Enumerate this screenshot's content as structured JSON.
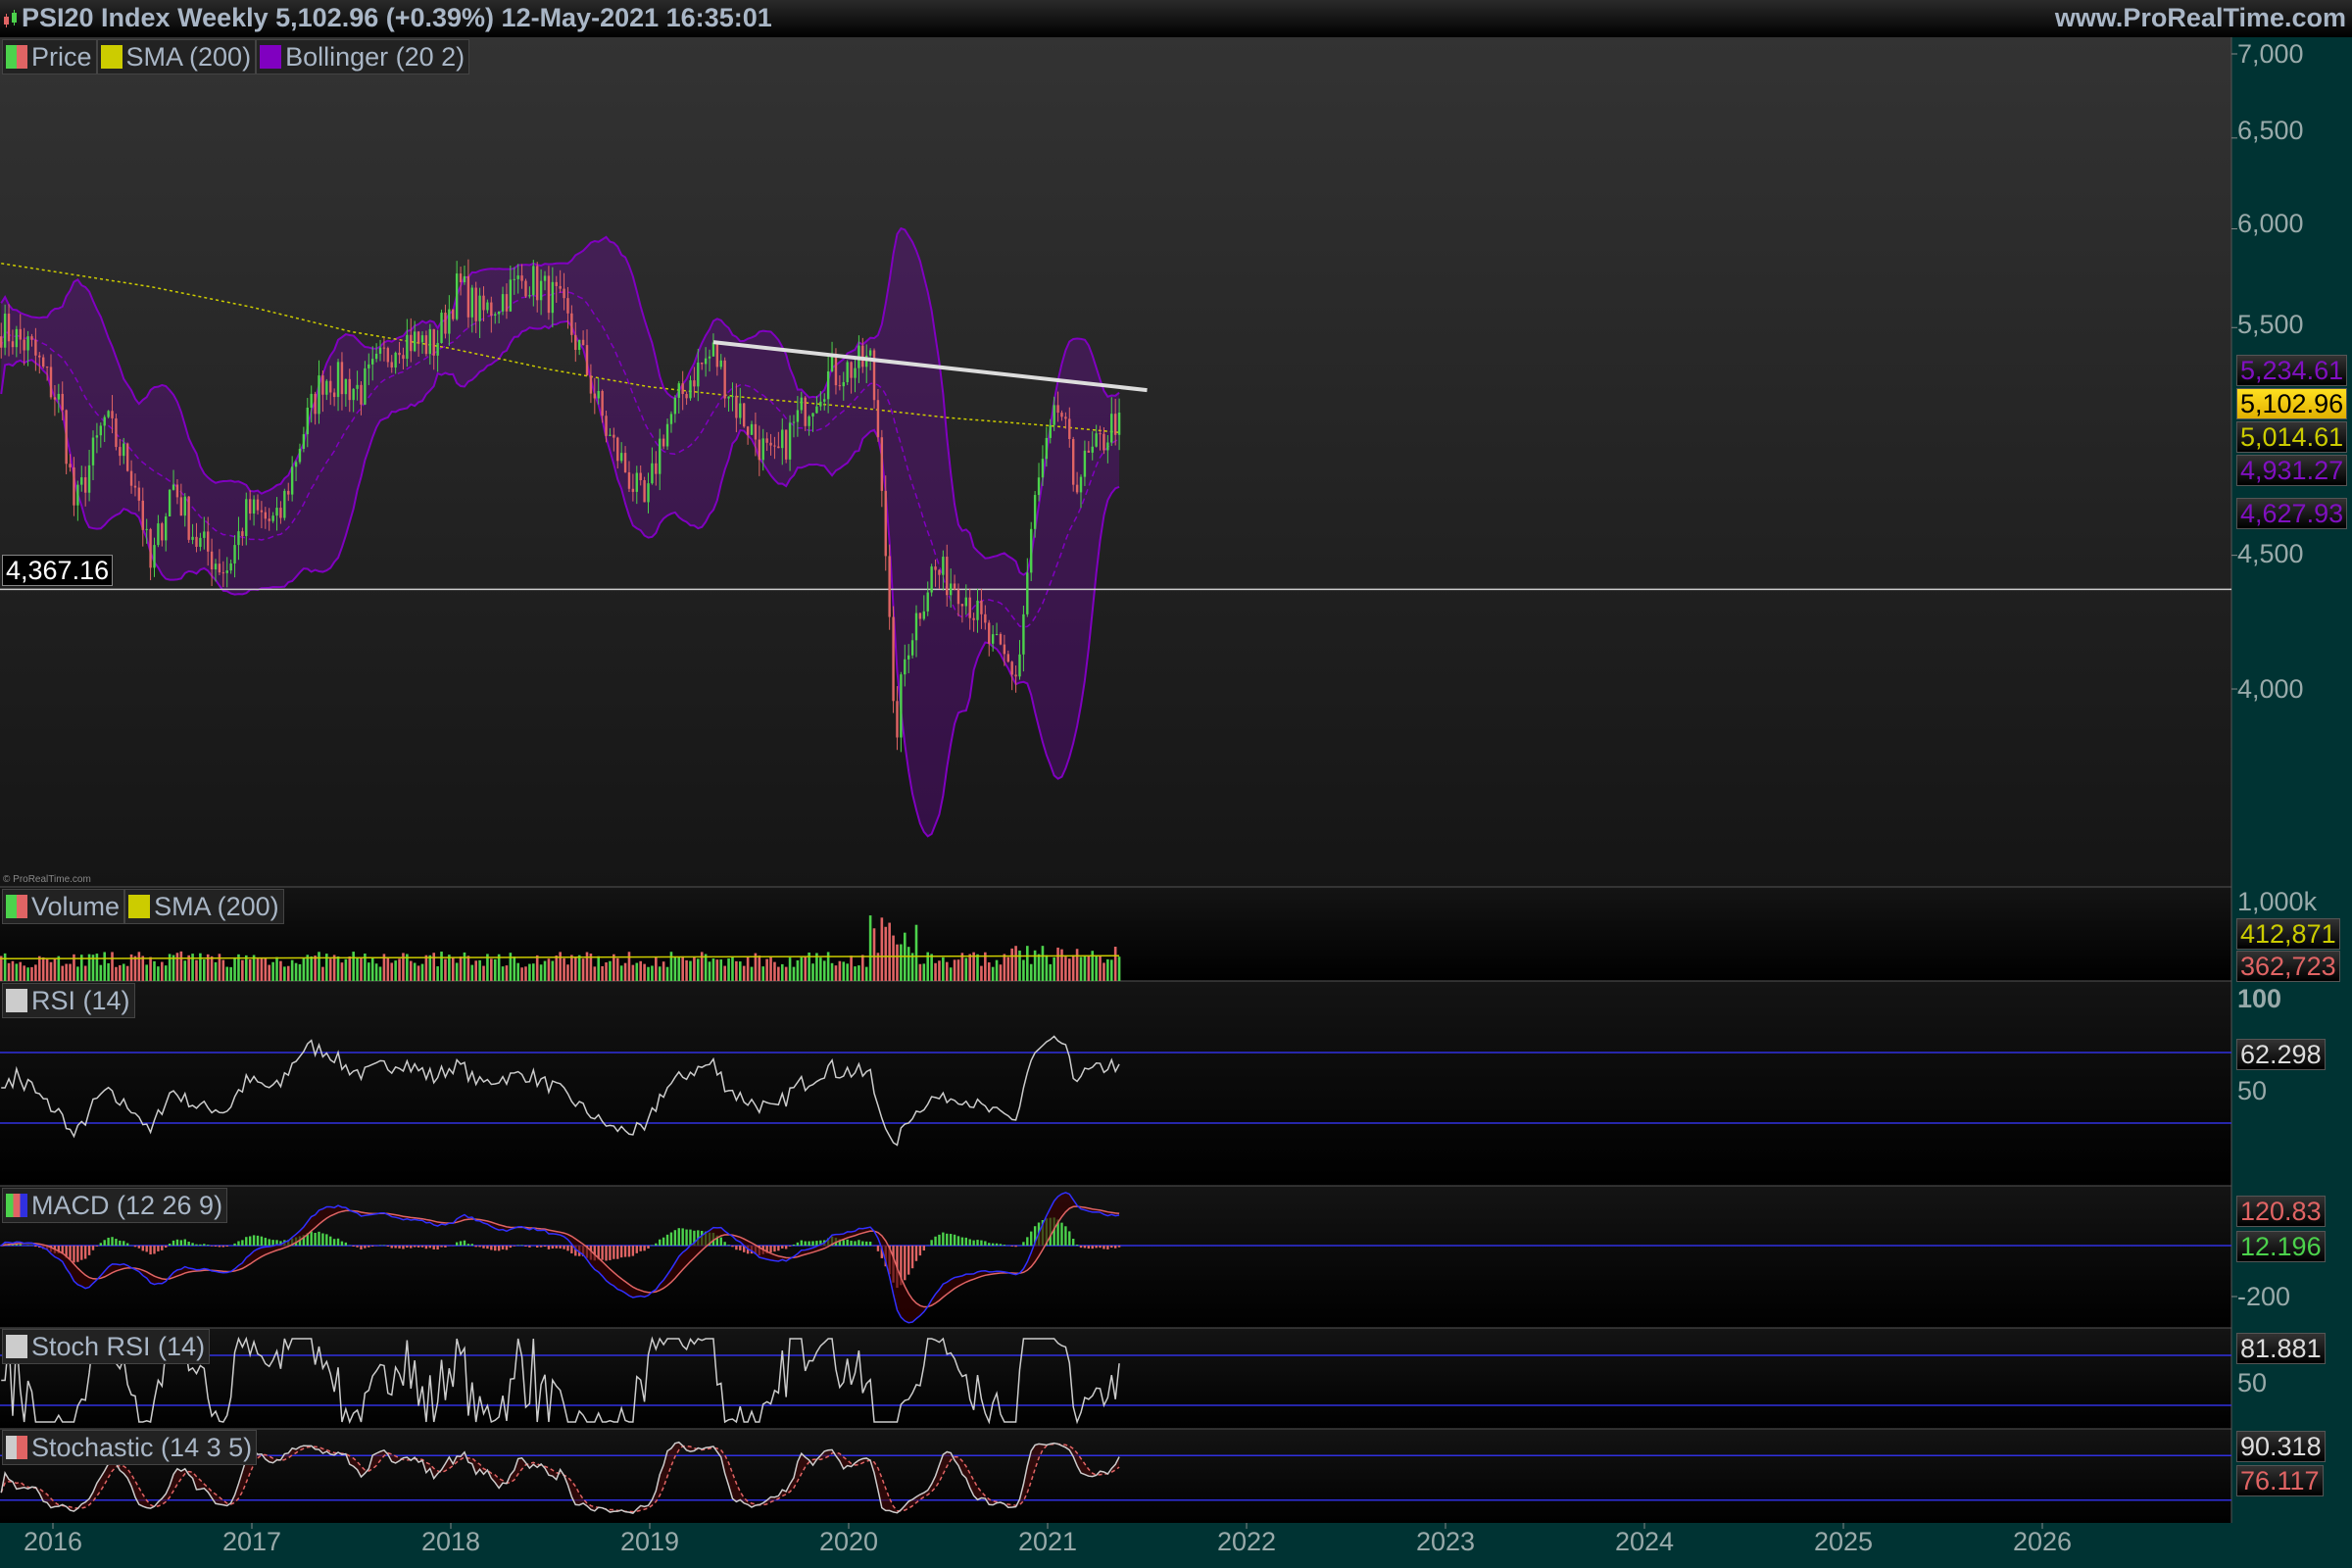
{
  "header": {
    "title": "PSI20 Index Weekly 5,102.96 (+0.39%) 12-May-2021 16:35:01",
    "site": "www.ProRealTime.com",
    "copyright": "© ProRealTime.com"
  },
  "legends": {
    "price": [
      "Price",
      "SMA (200)",
      "Bollinger (20 2)"
    ],
    "volume": [
      "Volume",
      "SMA (200)"
    ],
    "rsi": [
      "RSI (14)"
    ],
    "macd": [
      "MACD (12 26 9)"
    ],
    "stochrsi": [
      "Stoch RSI (14)"
    ],
    "stoch": [
      "Stochastic (14 3 5)"
    ]
  },
  "colors": {
    "up": "#4cd24c",
    "down": "#e06464",
    "sma": "#cccc00",
    "bollinger": "#8000c0",
    "axis_bg": "#003333",
    "level_line": "#3030e0",
    "macd": "#3030ff",
    "signal": "#e06464"
  },
  "axis": {
    "price_ticks": [
      "7,000",
      "6,500",
      "6,000",
      "5,500",
      "4,500",
      "4,000"
    ],
    "volume_ticks": [
      "1,000k"
    ],
    "rsi_ticks": [
      "100",
      "50"
    ],
    "macd_ticks": [
      "-200"
    ],
    "stochrsi_ticks": [
      "50"
    ],
    "years": [
      "2016",
      "2017",
      "2018",
      "2019",
      "2020",
      "2021",
      "2022",
      "2023",
      "2024",
      "2025",
      "2026"
    ]
  },
  "labels": {
    "hline": "4,367.16",
    "boll_upper": "5,234.61",
    "last_price": "5,102.96",
    "sma200": "5,014.61",
    "boll_mid": "4,931.27",
    "boll_lower": "4,627.93",
    "vol_sma": "412,871",
    "volume": "362,723",
    "rsi": "62.298",
    "macd": "120.83",
    "macd_hist": "12.196",
    "stochrsi": "81.881",
    "stoch_k": "90.318",
    "stoch_d": "76.117"
  },
  "chart_data": {
    "type": "candlestick",
    "title": "PSI20 Index Weekly",
    "y_scale": "log",
    "ylim": [
      3450,
      7100
    ],
    "xlim": [
      2015.74,
      2026.7
    ],
    "grid": false,
    "horizontal_line": 4367.16,
    "trendline": [
      [
        2019.32,
        5430
      ],
      [
        2021.5,
        5205
      ]
    ],
    "close_path": [
      [
        2015.74,
        5500
      ],
      [
        2015.89,
        5400
      ],
      [
        2016.04,
        5130
      ],
      [
        2016.11,
        4680
      ],
      [
        2016.26,
        5070
      ],
      [
        2016.42,
        4800
      ],
      [
        2016.49,
        4440
      ],
      [
        2016.6,
        4800
      ],
      [
        2016.72,
        4560
      ],
      [
        2016.87,
        4440
      ],
      [
        2016.98,
        4680
      ],
      [
        2017.13,
        4620
      ],
      [
        2017.25,
        5000
      ],
      [
        2017.36,
        5270
      ],
      [
        2017.55,
        5205
      ],
      [
        2017.74,
        5450
      ],
      [
        2017.92,
        5415
      ],
      [
        2018.04,
        5710
      ],
      [
        2018.15,
        5560
      ],
      [
        2018.38,
        5750
      ],
      [
        2018.53,
        5635
      ],
      [
        2018.64,
        5415
      ],
      [
        2018.79,
        5000
      ],
      [
        2018.98,
        4683
      ],
      [
        2019.06,
        5000
      ],
      [
        2019.21,
        5270
      ],
      [
        2019.32,
        5380
      ],
      [
        2019.43,
        5140
      ],
      [
        2019.62,
        4870
      ],
      [
        2019.74,
        5070
      ],
      [
        2019.89,
        5270
      ],
      [
        2020.11,
        5340
      ],
      [
        2020.17,
        4808
      ],
      [
        2020.23,
        3800
      ],
      [
        2020.29,
        4150
      ],
      [
        2020.42,
        4440
      ],
      [
        2020.57,
        4380
      ],
      [
        2020.72,
        4150
      ],
      [
        2020.85,
        4050
      ],
      [
        2020.94,
        4745
      ],
      [
        2021.06,
        5140
      ],
      [
        2021.13,
        4808
      ],
      [
        2021.25,
        4938
      ],
      [
        2021.36,
        5102.96
      ]
    ],
    "sma200_path": [
      [
        2015.74,
        5820
      ],
      [
        2016.5,
        5700
      ],
      [
        2017.0,
        5600
      ],
      [
        2017.5,
        5480
      ],
      [
        2018.0,
        5400
      ],
      [
        2018.5,
        5300
      ],
      [
        2019.0,
        5220
      ],
      [
        2019.5,
        5170
      ],
      [
        2020.0,
        5130
      ],
      [
        2020.5,
        5080
      ],
      [
        2021.0,
        5045
      ],
      [
        2021.36,
        5014.61
      ]
    ],
    "volume_avg": 412871,
    "rsi_levels": [
      70,
      30
    ],
    "stochrsi_levels": [
      80,
      20
    ],
    "stoch_levels": [
      80,
      20
    ]
  }
}
